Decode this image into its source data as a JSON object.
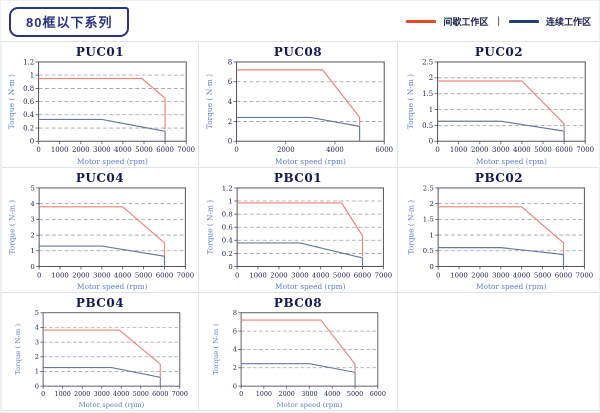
{
  "header": {
    "series_badge": "80框以下系列"
  },
  "legend": {
    "intermittent": {
      "label": "间歇工作区",
      "color": "#e8472a"
    },
    "separator": "|",
    "continuous": {
      "label": "连续工作区",
      "color": "#1f3f77"
    }
  },
  "colors": {
    "chart_red": "#ef8279",
    "chart_blue": "#68799f",
    "gridline": "#9aa0a6",
    "frame": "#4d5156",
    "navy_text": "#20264f",
    "axis_label_blue": "#5c80c6"
  },
  "chart_data": [
    {
      "type": "line",
      "title": "PUC01",
      "xlabel": "Motor speed (rpm)",
      "ylabel": "Torque ( N-m )",
      "xlim": [
        0,
        7000
      ],
      "ylim": [
        0,
        1.2
      ],
      "xticks": [
        0,
        1000,
        2000,
        3000,
        4000,
        5000,
        6000,
        7000
      ],
      "yticks": [
        0,
        0.2,
        0.4,
        0.6,
        0.8,
        1,
        1.2
      ],
      "grid": "dashed-horizontal",
      "legend_position": "none",
      "series": [
        {
          "name": "间歇工作区",
          "color": "#ef8279",
          "points": [
            [
              0,
              0.95
            ],
            [
              4900,
              0.95
            ],
            [
              6000,
              0.65
            ],
            [
              6000,
              0.18
            ]
          ]
        },
        {
          "name": "连续工作区",
          "color": "#68799f",
          "points": [
            [
              0,
              0.33
            ],
            [
              3000,
              0.33
            ],
            [
              6000,
              0.15
            ],
            [
              6000,
              0
            ]
          ]
        }
      ]
    },
    {
      "type": "line",
      "title": "PUC08",
      "xlabel": "Motor speed (rpm)",
      "ylabel": "Torque ( N-m )",
      "xlim": [
        0,
        6000
      ],
      "ylim": [
        0,
        8
      ],
      "xticks": [
        0,
        2000,
        4000,
        6000
      ],
      "yticks": [
        0,
        2,
        4,
        6,
        8
      ],
      "grid": "dashed-horizontal",
      "legend_position": "none",
      "series": [
        {
          "name": "间歇工作区",
          "color": "#ef8279",
          "points": [
            [
              0,
              7.2
            ],
            [
              3500,
              7.2
            ],
            [
              5000,
              2.4
            ],
            [
              5000,
              1.6
            ]
          ]
        },
        {
          "name": "连续工作区",
          "color": "#68799f",
          "points": [
            [
              0,
              2.4
            ],
            [
              3000,
              2.4
            ],
            [
              5000,
              1.5
            ],
            [
              5000,
              0
            ]
          ]
        }
      ]
    },
    {
      "type": "line",
      "title": "PUC02",
      "xlabel": "Motor speed (rpm)",
      "ylabel": "Torque ( N-m )",
      "xlim": [
        0,
        7000
      ],
      "ylim": [
        0,
        2.5
      ],
      "xticks": [
        0,
        1000,
        2000,
        3000,
        4000,
        5000,
        6000,
        7000
      ],
      "yticks": [
        0,
        0.5,
        1,
        1.5,
        2,
        2.5
      ],
      "grid": "dashed-horizontal",
      "legend_position": "none",
      "series": [
        {
          "name": "间歇工作区",
          "color": "#ef8279",
          "points": [
            [
              0,
              1.9
            ],
            [
              4000,
              1.9
            ],
            [
              6000,
              0.55
            ],
            [
              6000,
              0.35
            ]
          ]
        },
        {
          "name": "连续工作区",
          "color": "#68799f",
          "points": [
            [
              0,
              0.63
            ],
            [
              3000,
              0.63
            ],
            [
              6000,
              0.32
            ],
            [
              6000,
              0
            ]
          ]
        }
      ]
    },
    {
      "type": "line",
      "title": "PUC04",
      "xlabel": "Motor speed (rpm)",
      "ylabel": "Torque ( N-m )",
      "xlim": [
        0,
        7000
      ],
      "ylim": [
        0,
        5
      ],
      "xticks": [
        0,
        1000,
        2000,
        3000,
        4000,
        5000,
        6000,
        7000
      ],
      "yticks": [
        0,
        1,
        2,
        3,
        4,
        5
      ],
      "grid": "dashed-horizontal",
      "legend_position": "none",
      "series": [
        {
          "name": "间歇工作区",
          "color": "#ef8279",
          "points": [
            [
              0,
              3.8
            ],
            [
              4000,
              3.8
            ],
            [
              6000,
              1.5
            ],
            [
              6000,
              0.7
            ]
          ]
        },
        {
          "name": "连续工作区",
          "color": "#68799f",
          "points": [
            [
              0,
              1.3
            ],
            [
              3000,
              1.3
            ],
            [
              6000,
              0.65
            ],
            [
              6000,
              0
            ]
          ]
        }
      ]
    },
    {
      "type": "line",
      "title": "PBC01",
      "xlabel": "Motor speed (rpm)",
      "ylabel": "Torque ( N-m )",
      "xlim": [
        0,
        7000
      ],
      "ylim": [
        0,
        1.2
      ],
      "xticks": [
        0,
        1000,
        2000,
        3000,
        4000,
        5000,
        6000,
        7000
      ],
      "yticks": [
        0,
        0.2,
        0.4,
        0.6,
        0.8,
        1,
        1.2
      ],
      "grid": "dashed-horizontal",
      "legend_position": "none",
      "series": [
        {
          "name": "间歇工作区",
          "color": "#ef8279",
          "points": [
            [
              0,
              0.97
            ],
            [
              5000,
              0.97
            ],
            [
              6000,
              0.47
            ],
            [
              6000,
              0.15
            ]
          ]
        },
        {
          "name": "连续工作区",
          "color": "#68799f",
          "points": [
            [
              0,
              0.36
            ],
            [
              3000,
              0.36
            ],
            [
              6000,
              0.13
            ],
            [
              6000,
              0
            ]
          ]
        }
      ]
    },
    {
      "type": "line",
      "title": "PBC02",
      "xlabel": "Motor speed (rpm)",
      "ylabel": "Torque ( N-m )",
      "xlim": [
        0,
        7000
      ],
      "ylim": [
        0,
        2.5
      ],
      "xticks": [
        0,
        1000,
        2000,
        3000,
        4000,
        5000,
        6000,
        7000
      ],
      "yticks": [
        0,
        0.5,
        1,
        1.5,
        2,
        2.5
      ],
      "grid": "dashed-horizontal",
      "legend_position": "none",
      "series": [
        {
          "name": "间歇工作区",
          "color": "#ef8279",
          "points": [
            [
              0,
              1.9
            ],
            [
              4000,
              1.9
            ],
            [
              6000,
              0.75
            ],
            [
              6000,
              0.4
            ]
          ]
        },
        {
          "name": "连续工作区",
          "color": "#68799f",
          "points": [
            [
              0,
              0.6
            ],
            [
              3000,
              0.6
            ],
            [
              6000,
              0.38
            ],
            [
              6000,
              0
            ]
          ]
        }
      ]
    },
    {
      "type": "line",
      "title": "PBC04",
      "xlabel": "Motor speed (rpm)",
      "ylabel": "Torque ( N-m )",
      "xlim": [
        0,
        7000
      ],
      "ylim": [
        0,
        5
      ],
      "xticks": [
        0,
        1000,
        2000,
        3000,
        4000,
        5000,
        6000,
        7000
      ],
      "yticks": [
        0,
        1,
        2,
        3,
        4,
        5
      ],
      "grid": "dashed-horizontal",
      "legend_position": "none",
      "series": [
        {
          "name": "间歇工作区",
          "color": "#ef8279",
          "points": [
            [
              0,
              3.82
            ],
            [
              3900,
              3.82
            ],
            [
              6000,
              1.5
            ],
            [
              6000,
              0.65
            ]
          ]
        },
        {
          "name": "连续工作区",
          "color": "#68799f",
          "points": [
            [
              0,
              1.27
            ],
            [
              3500,
              1.27
            ],
            [
              6000,
              0.6
            ],
            [
              6000,
              0
            ]
          ]
        }
      ]
    },
    {
      "type": "line",
      "title": "PBC08",
      "xlabel": "Motor speed (rpm)",
      "ylabel": "Torque ( N-m )",
      "xlim": [
        0,
        6000
      ],
      "ylim": [
        0,
        8
      ],
      "xticks": [
        0,
        1000,
        2000,
        3000,
        4000,
        5000,
        6000
      ],
      "yticks": [
        0,
        2,
        4,
        6,
        8
      ],
      "grid": "dashed-horizontal",
      "legend_position": "none",
      "series": [
        {
          "name": "间歇工作区",
          "color": "#ef8279",
          "points": [
            [
              0,
              7.2
            ],
            [
              3500,
              7.2
            ],
            [
              5000,
              2.4
            ],
            [
              5000,
              1.6
            ]
          ]
        },
        {
          "name": "连续工作区",
          "color": "#68799f",
          "points": [
            [
              0,
              2.45
            ],
            [
              3000,
              2.45
            ],
            [
              5000,
              1.5
            ],
            [
              5000,
              0
            ]
          ]
        }
      ]
    }
  ]
}
